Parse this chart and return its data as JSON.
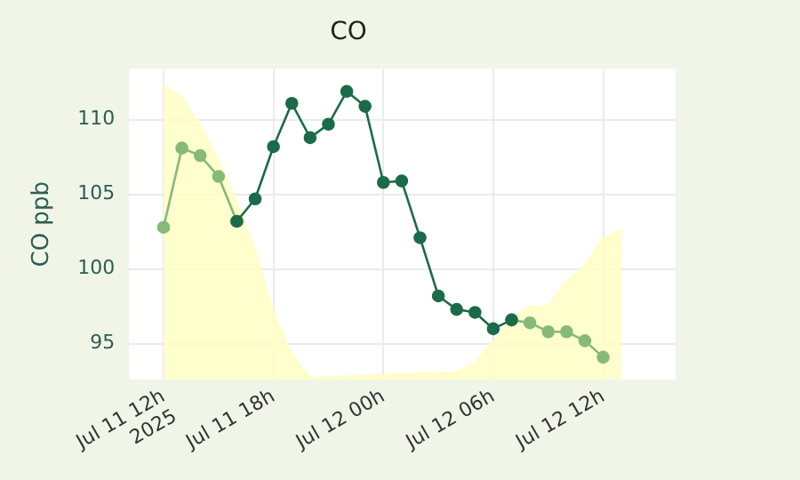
{
  "chart_data": {
    "type": "line",
    "title": "CO",
    "ylabel": "CO ppb",
    "x": [
      "2025-07-11T12:00",
      "2025-07-11T13:00",
      "2025-07-11T14:00",
      "2025-07-11T15:00",
      "2025-07-11T16:00",
      "2025-07-11T17:00",
      "2025-07-11T18:00",
      "2025-07-11T19:00",
      "2025-07-11T20:00",
      "2025-07-11T21:00",
      "2025-07-11T22:00",
      "2025-07-11T23:00",
      "2025-07-12T00:00",
      "2025-07-12T01:00",
      "2025-07-12T02:00",
      "2025-07-12T03:00",
      "2025-07-12T04:00",
      "2025-07-12T05:00",
      "2025-07-12T06:00",
      "2025-07-12T07:00",
      "2025-07-12T08:00",
      "2025-07-12T09:00",
      "2025-07-12T10:00",
      "2025-07-12T11:00",
      "2025-07-12T12:00"
    ],
    "series": [
      {
        "type": "area",
        "marker": "none",
        "color": "#ffffc0",
        "x": [
          "2025-07-11T12:00",
          "2025-07-11T13:00",
          "2025-07-11T14:00",
          "2025-07-11T15:00",
          "2025-07-11T16:00",
          "2025-07-11T17:00",
          "2025-07-11T18:00",
          "2025-07-11T19:00",
          "2025-07-11T20:00",
          "2025-07-11T21:00",
          "2025-07-11T22:00",
          "2025-07-11T23:00",
          "2025-07-12T00:00",
          "2025-07-12T01:00",
          "2025-07-12T02:00",
          "2025-07-12T03:00",
          "2025-07-12T04:00",
          "2025-07-12T05:00",
          "2025-07-12T06:00",
          "2025-07-12T07:00",
          "2025-07-12T08:00",
          "2025-07-12T09:00",
          "2025-07-12T10:00",
          "2025-07-12T11:00",
          "2025-07-12T12:00",
          "2025-07-12T13:00"
        ],
        "values": [
          112.3,
          111.5,
          109.6,
          107.2,
          104.5,
          101.2,
          97.0,
          94.3,
          92.7,
          null,
          null,
          null,
          null,
          null,
          null,
          null,
          93.1,
          93.7,
          95.1,
          96.7,
          97.5,
          97.5,
          99.2,
          100.2,
          102.1,
          102.6
        ]
      },
      {
        "color": "#1b6b4a",
        "values": [
          null,
          null,
          null,
          null,
          103.2,
          104.7,
          108.2,
          111.1,
          108.8,
          109.7,
          111.9,
          110.9,
          105.8,
          105.9,
          102.1,
          98.2,
          97.3,
          97.1,
          96.0,
          96.6,
          null,
          null,
          null,
          null,
          null
        ]
      },
      {
        "color": "#86b97a",
        "values": [
          102.8,
          108.1,
          107.6,
          106.2,
          103.2,
          null,
          null,
          null,
          null,
          null,
          null,
          null,
          null,
          null,
          null,
          null,
          null,
          null,
          null,
          96.6,
          96.4,
          95.8,
          95.8,
          95.2,
          94.1
        ]
      }
    ],
    "xlim": [
      "2025-07-11T10:07",
      "2025-07-12T15:57"
    ],
    "xticks": [
      {
        "value": "2025-07-11T12:00",
        "label": "Jul 11 12h\n2025"
      },
      {
        "value": "2025-07-11T18:00",
        "label": "Jul 11 18h"
      },
      {
        "value": "2025-07-12T00:00",
        "label": "Jul 12 00h"
      },
      {
        "value": "2025-07-12T06:00",
        "label": "Jul 12 06h"
      },
      {
        "value": "2025-07-12T12:00",
        "label": "Jul 12 12h"
      }
    ],
    "ylim": [
      92.6,
      113.4
    ],
    "yticks": [
      95,
      100,
      105,
      110
    ],
    "grid": true,
    "marker": "circle",
    "line_style": "solid",
    "legend": false
  }
}
